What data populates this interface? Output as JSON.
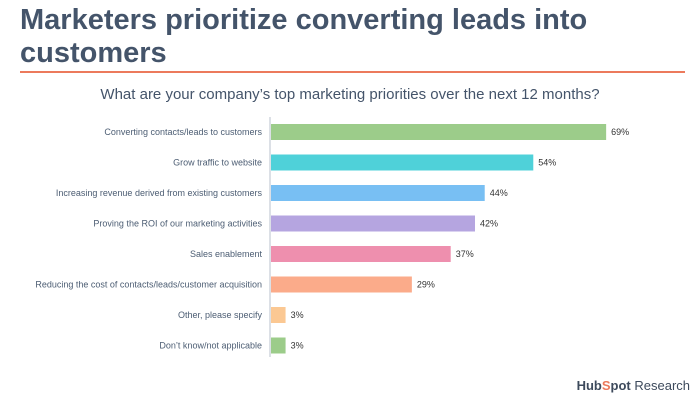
{
  "header": {
    "title": "Marketers prioritize converting leads into customers"
  },
  "chart_data": {
    "type": "bar",
    "orientation": "horizontal",
    "title": "What are your company’s top marketing priorities over the next 12 months?",
    "xlabel": "",
    "ylabel": "",
    "xlim": [
      0,
      70
    ],
    "grid": false,
    "categories": [
      "Converting contacts/leads to customers",
      "Grow traffic to website",
      "Increasing revenue derived from existing customers",
      "Proving the ROI of our marketing activities",
      "Sales enablement",
      "Reducing the cost of contacts/leads/customer acquisition",
      "Other, please specify",
      "Don’t know/not applicable"
    ],
    "values": [
      69,
      54,
      44,
      42,
      37,
      29,
      3,
      3
    ],
    "value_labels": [
      "69%",
      "54%",
      "44%",
      "42%",
      "37%",
      "29%",
      "3%",
      "3%"
    ],
    "colors": [
      "#9ccc8a",
      "#4fd1d9",
      "#78bff3",
      "#b5a5e0",
      "#ee8fae",
      "#fbab8a",
      "#fbc893",
      "#9ccc8a"
    ]
  },
  "brand": {
    "logo_left": "Hub",
    "logo_accent": "S",
    "logo_right": "pot",
    "name": "Research"
  }
}
